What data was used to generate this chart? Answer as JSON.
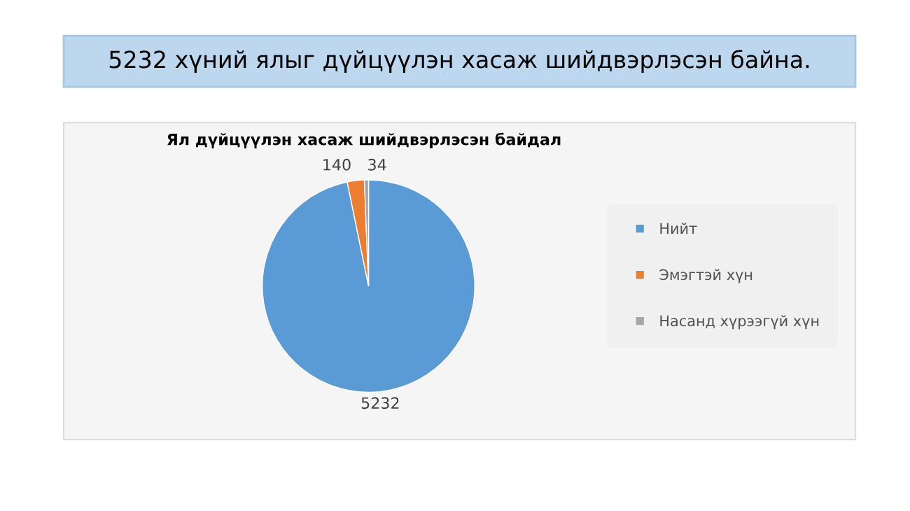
{
  "chart_data": {
    "type": "pie",
    "title": "5232 хүний ялыг дүйцүүлэн хасаж шийдвэрлэсэн байна.",
    "subtitle": "Ял дүйцүүлэн хасаж шийдвэрлэсэн байдал",
    "categories": [
      "Нийт",
      "Эмэгтэй хүн",
      "Насанд хүрээгүй хүн"
    ],
    "values": [
      5232,
      140,
      34
    ],
    "colors": [
      "#5b9bd5",
      "#ed7d31",
      "#a5a5a5"
    ],
    "data_labels": true,
    "legend": "right"
  }
}
